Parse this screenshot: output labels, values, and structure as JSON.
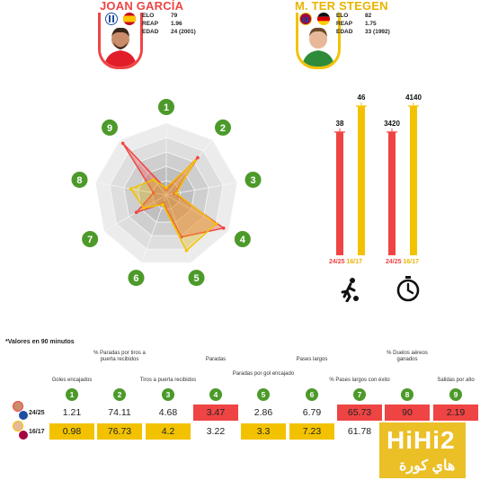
{
  "players": {
    "p1": {
      "name": "JOAN GARCÍA",
      "elo_label": "ELO",
      "elo": "79",
      "reap_label": "REAP",
      "reap": "1.96",
      "edad_label": "EDAD",
      "edad": "24 (2001)",
      "color": "#ef4444"
    },
    "p2": {
      "name": "M. TER STEGEN",
      "elo_label": "ELO",
      "elo": "82",
      "reap_label": "REAP",
      "reap": "1.75",
      "edad_label": "EDAD",
      "edad": "33 (1992)",
      "color": "#f2c200"
    }
  },
  "radar": {
    "axis_numbers": [
      "1",
      "2",
      "3",
      "4",
      "5",
      "6",
      "7",
      "8",
      "9"
    ],
    "series_colors": [
      "#ef4444",
      "#f2c200"
    ]
  },
  "bars": {
    "matches": {
      "p1_value": "38",
      "p2_value": "46"
    },
    "minutes": {
      "p1_value": "3420",
      "p2_value": "4140"
    },
    "season_p1": "24/25",
    "season_p2": "16/17"
  },
  "table": {
    "note": "*Valores en 90 minutos",
    "columns": [
      "Goles encajados",
      "% Paradas por tiros a puerta recibidos",
      "Tiros a puerta recibidos",
      "Paradas",
      "Paradas por gol encajado",
      "Pases largos",
      "% Pases largos con éxito",
      "% Duelos aéreos ganados",
      "Salidas por alto"
    ],
    "row1_label": "24/25",
    "row2_label": "16/17",
    "row1": [
      "1.21",
      "74.11",
      "4.68",
      "3.47",
      "2.86",
      "6.79",
      "65.73",
      "90",
      "2.19"
    ],
    "row2": [
      "0.98",
      "76.73",
      "4.2",
      "3.22",
      "3.3",
      "7.23",
      "61.78",
      "",
      ""
    ]
  },
  "watermark": {
    "line1": "HiHi2",
    "line2": "هاي كورة"
  },
  "chart_data": [
    {
      "type": "radar",
      "axes": [
        "1",
        "2",
        "3",
        "4",
        "5",
        "6",
        "7",
        "8",
        "9"
      ],
      "series": [
        {
          "name": "24/25",
          "values": [
            0.08,
            0.68,
            0.12,
            0.92,
            0.62,
            0.12,
            0.48,
            0.18,
            0.94
          ]
        },
        {
          "name": "16/17",
          "values": [
            0.1,
            0.62,
            0.14,
            0.8,
            0.82,
            0.14,
            0.36,
            0.5,
            0.28
          ]
        }
      ]
    },
    {
      "type": "bar",
      "categories": [
        "24/25",
        "16/17"
      ],
      "series": [
        {
          "values": [
            38,
            46
          ]
        }
      ],
      "ylim": [
        0,
        46
      ]
    },
    {
      "type": "bar",
      "categories": [
        "24/25",
        "16/17"
      ],
      "series": [
        {
          "values": [
            3420,
            4140
          ]
        }
      ],
      "ylim": [
        0,
        4140
      ]
    },
    {
      "type": "table",
      "columns": [
        "Goles encajados",
        "% Paradas por tiros a puerta recibidos",
        "Tiros a puerta recibidos",
        "Paradas",
        "Paradas por gol encajado",
        "Pases largos",
        "% Pases largos con éxito",
        "% Duelos aéreos ganados",
        "Salidas por alto"
      ],
      "rows": [
        {
          "label": "24/25",
          "values": [
            1.21,
            74.11,
            4.68,
            3.47,
            2.86,
            6.79,
            65.73,
            90,
            2.19
          ]
        },
        {
          "label": "16/17",
          "values": [
            0.98,
            76.73,
            4.2,
            3.22,
            3.3,
            7.23,
            61.78,
            null,
            null
          ]
        }
      ],
      "highlight": {
        "24/25": [
          3,
          6,
          7,
          8
        ],
        "16/17": [
          0,
          1,
          2,
          4,
          5
        ]
      }
    }
  ]
}
